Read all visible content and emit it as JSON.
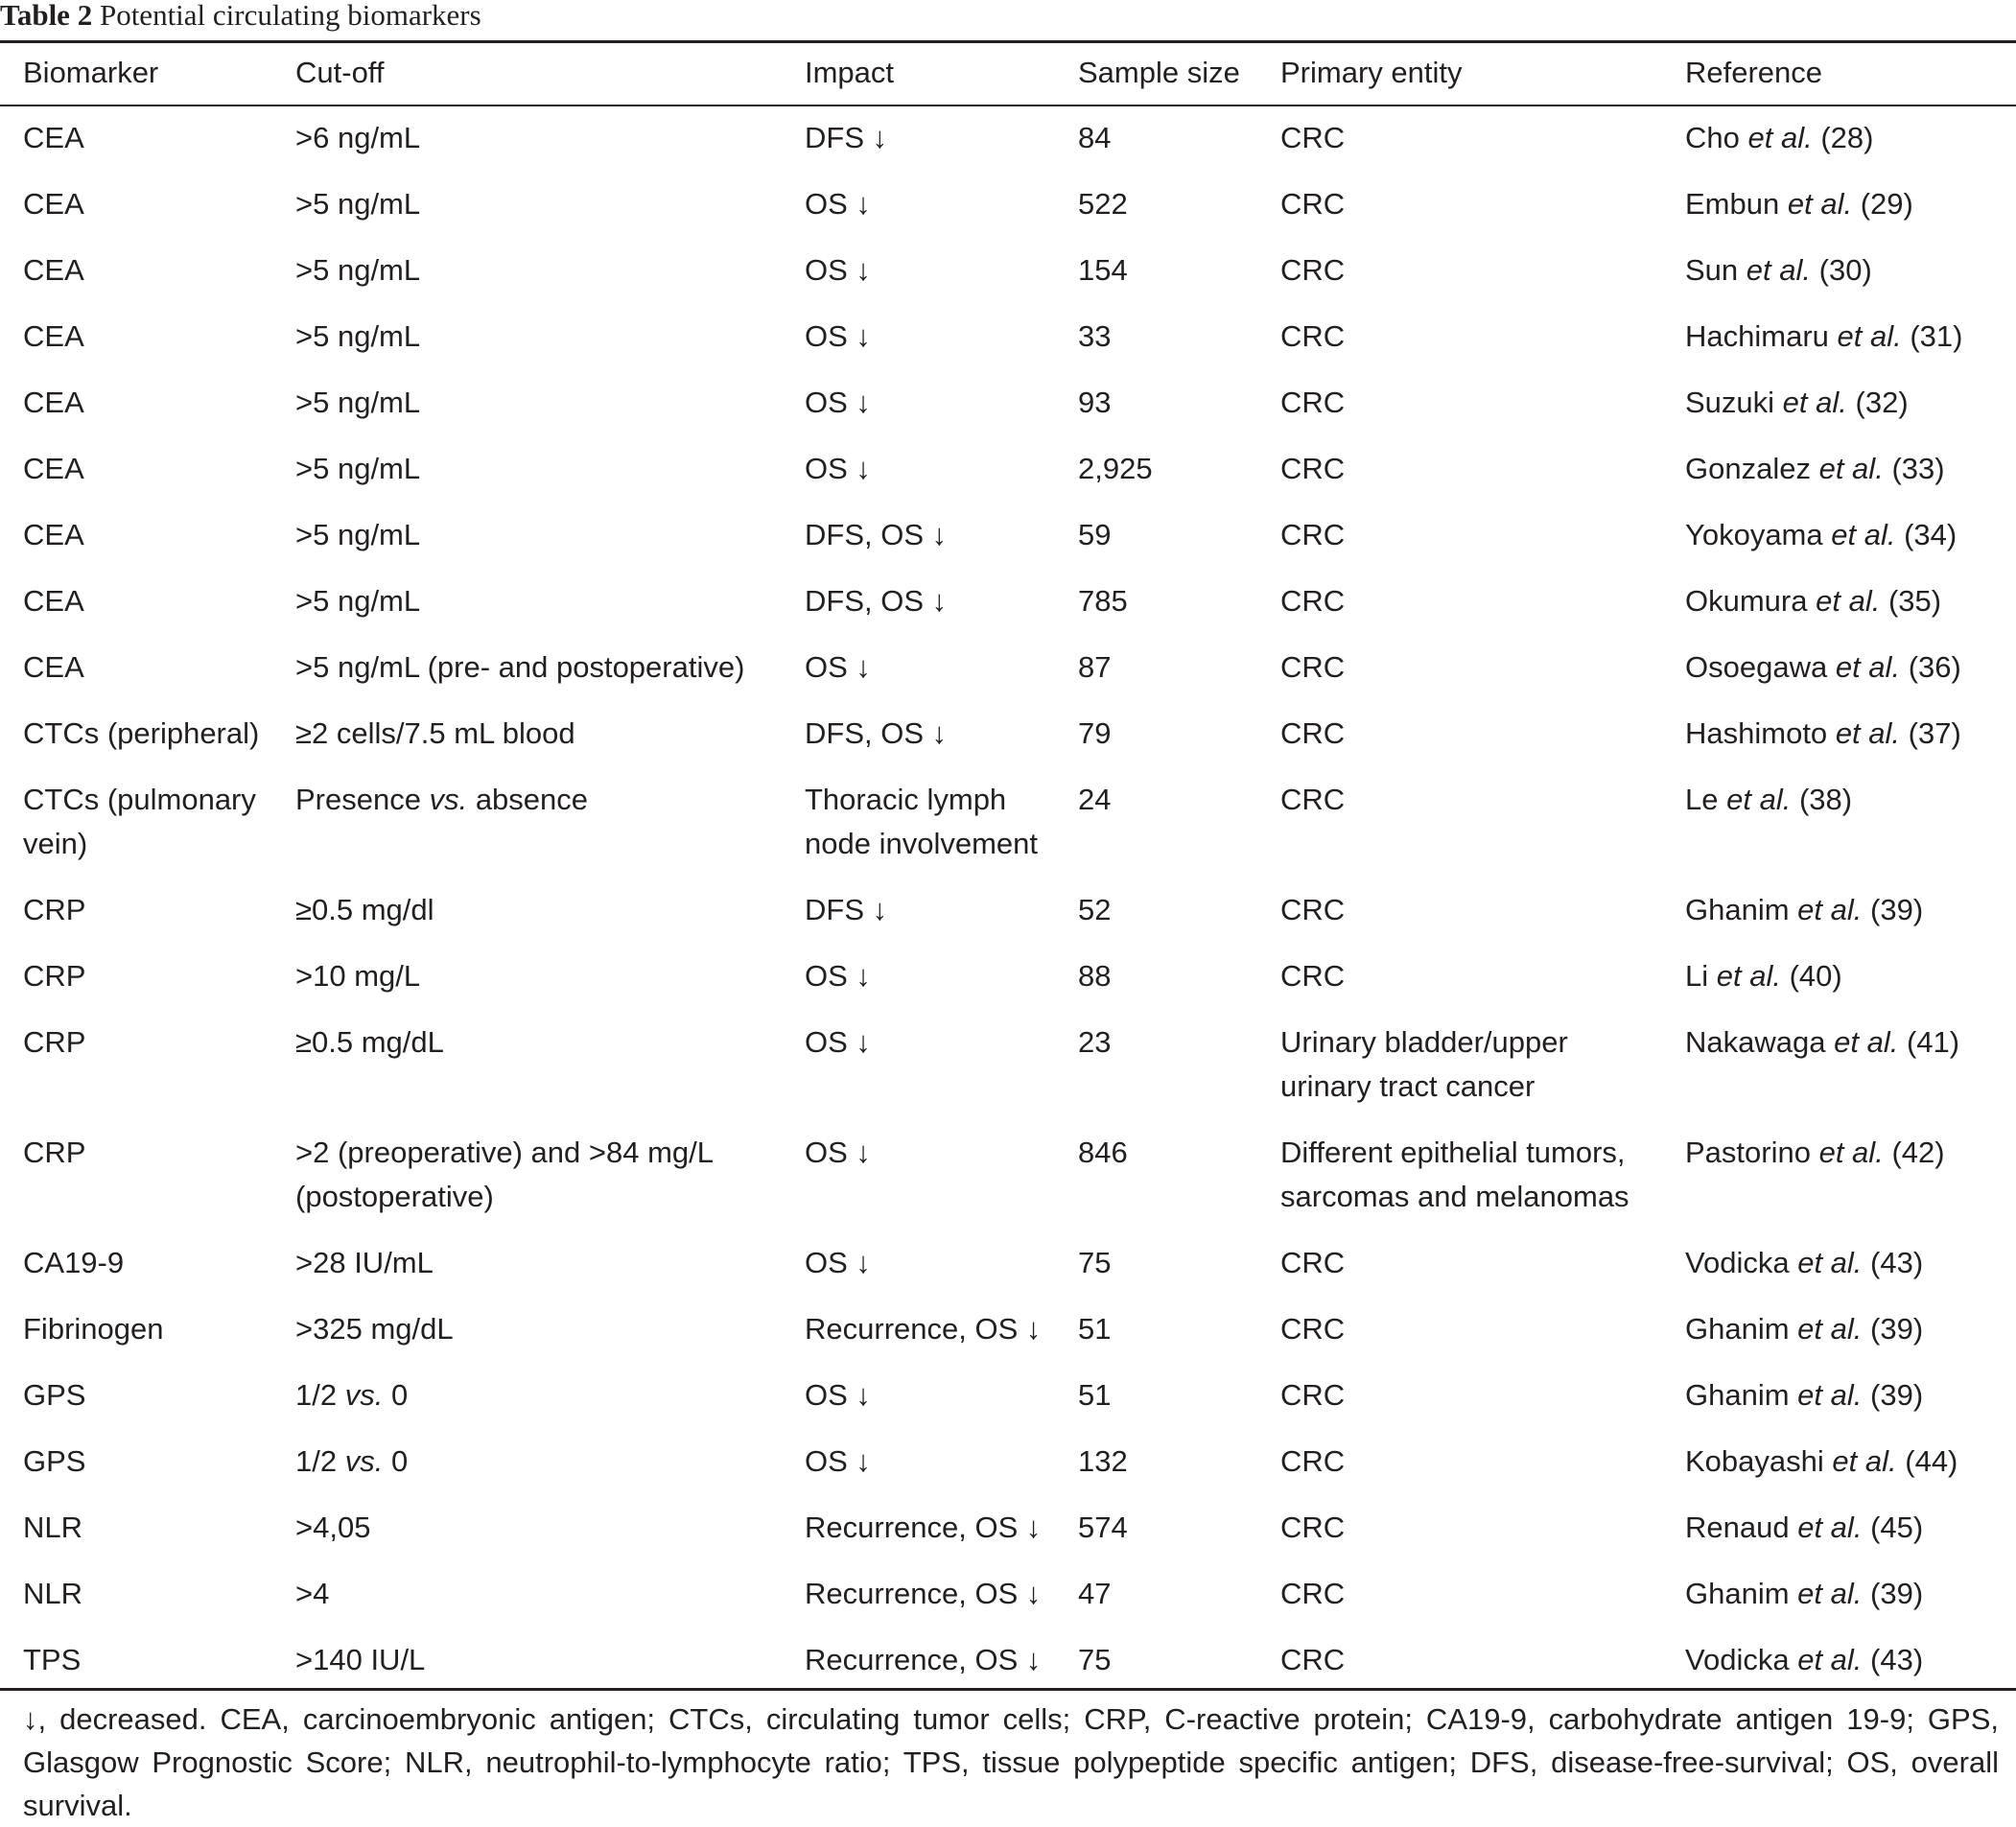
{
  "caption": {
    "label": "Table 2",
    "title": "Potential circulating biomarkers"
  },
  "headers": [
    "Biomarker",
    "Cut-off",
    "Impact",
    "Sample size",
    "Primary entity",
    "Reference"
  ],
  "rows": [
    {
      "biomarker": [
        "CEA"
      ],
      "cutoff": ">6 ng/mL",
      "impact": [
        "DFS ↓"
      ],
      "n": "84",
      "entity": [
        "CRC"
      ],
      "ref": {
        "author": "Cho",
        "etal": "et al.",
        "num": "(28)"
      }
    },
    {
      "biomarker": [
        "CEA"
      ],
      "cutoff": ">5 ng/mL",
      "impact": [
        "OS ↓"
      ],
      "n": "522",
      "entity": [
        "CRC"
      ],
      "ref": {
        "author": "Embun",
        "etal": "et al.",
        "num": "(29)"
      }
    },
    {
      "biomarker": [
        "CEA"
      ],
      "cutoff": ">5 ng/mL",
      "impact": [
        "OS ↓"
      ],
      "n": "154",
      "entity": [
        "CRC"
      ],
      "ref": {
        "author": "Sun",
        "etal": "et al.",
        "num": "(30)"
      }
    },
    {
      "biomarker": [
        "CEA"
      ],
      "cutoff": ">5 ng/mL",
      "impact": [
        "OS ↓"
      ],
      "n": "33",
      "entity": [
        "CRC"
      ],
      "ref": {
        "author": "Hachimaru",
        "etal": "et al.",
        "num": "(31)"
      }
    },
    {
      "biomarker": [
        "CEA"
      ],
      "cutoff": ">5 ng/mL",
      "impact": [
        "OS ↓"
      ],
      "n": "93",
      "entity": [
        "CRC"
      ],
      "ref": {
        "author": "Suzuki",
        "etal": "et al.",
        "num": "(32)"
      }
    },
    {
      "biomarker": [
        "CEA"
      ],
      "cutoff": ">5 ng/mL",
      "impact": [
        "OS ↓"
      ],
      "n": "2,925",
      "entity": [
        "CRC"
      ],
      "ref": {
        "author": "Gonzalez",
        "etal": "et al.",
        "num": "(33)"
      }
    },
    {
      "biomarker": [
        "CEA"
      ],
      "cutoff": ">5 ng/mL",
      "impact": [
        "DFS, OS ↓"
      ],
      "n": "59",
      "entity": [
        "CRC"
      ],
      "ref": {
        "author": "Yokoyama",
        "etal": "et al.",
        "num": "(34)"
      }
    },
    {
      "biomarker": [
        "CEA"
      ],
      "cutoff": ">5 ng/mL",
      "impact": [
        "DFS, OS ↓"
      ],
      "n": "785",
      "entity": [
        "CRC"
      ],
      "ref": {
        "author": "Okumura",
        "etal": "et al.",
        "num": "(35)"
      }
    },
    {
      "biomarker": [
        "CEA"
      ],
      "cutoff": ">5 ng/mL (pre- and postoperative)",
      "impact": [
        "OS ↓"
      ],
      "n": "87",
      "entity": [
        "CRC"
      ],
      "ref": {
        "author": "Osoegawa",
        "etal": "et al.",
        "num": "(36)"
      }
    },
    {
      "biomarker": [
        "CTCs (peripheral)"
      ],
      "cutoff": "≥2 cells/7.5 mL blood",
      "impact": [
        "DFS, OS ↓"
      ],
      "n": "79",
      "entity": [
        "CRC"
      ],
      "ref": {
        "author": "Hashimoto",
        "etal": "et al.",
        "num": "(37)"
      }
    },
    {
      "biomarker": [
        "CTCs (pulmonary",
        "vein)"
      ],
      "cutoff_parts": {
        "a": "Presence ",
        "vs": "vs.",
        "b": " absence"
      },
      "impact": [
        "Thoracic lymph",
        "node involvement"
      ],
      "n": "24",
      "entity": [
        "CRC"
      ],
      "ref": {
        "author": "Le",
        "etal": "et al.",
        "num": "(38)"
      }
    },
    {
      "biomarker": [
        "CRP"
      ],
      "cutoff": "≥0.5 mg/dl",
      "impact": [
        "DFS ↓"
      ],
      "n": "52",
      "entity": [
        "CRC"
      ],
      "ref": {
        "author": "Ghanim",
        "etal": "et al.",
        "num": "(39)"
      }
    },
    {
      "biomarker": [
        "CRP"
      ],
      "cutoff": ">10 mg/L",
      "impact": [
        "OS ↓"
      ],
      "n": "88",
      "entity": [
        "CRC"
      ],
      "ref": {
        "author": "Li",
        "etal": "et al.",
        "num": "(40)"
      }
    },
    {
      "biomarker": [
        "CRP"
      ],
      "cutoff": "≥0.5 mg/dL",
      "impact": [
        "OS ↓"
      ],
      "n": "23",
      "entity": [
        "Urinary bladder/upper",
        "urinary tract cancer"
      ],
      "ref": {
        "author": "Nakawaga",
        "etal": "et al.",
        "num": "(41)"
      }
    },
    {
      "biomarker": [
        "CRP"
      ],
      "cutoff_lines": [
        ">2 (preoperative) and >84 mg/L",
        "(postoperative)"
      ],
      "impact": [
        "OS ↓"
      ],
      "n": "846",
      "entity": [
        "Different epithelial tumors,",
        "sarcomas and melanomas"
      ],
      "ref": {
        "author": "Pastorino",
        "etal": "et al.",
        "num": "(42)"
      }
    },
    {
      "biomarker": [
        "CA19-9"
      ],
      "cutoff": ">28 IU/mL",
      "impact": [
        "OS ↓"
      ],
      "n": "75",
      "entity": [
        "CRC"
      ],
      "ref": {
        "author": "Vodicka",
        "etal": "et al.",
        "num": "(43)"
      }
    },
    {
      "biomarker": [
        "Fibrinogen"
      ],
      "cutoff": ">325 mg/dL",
      "impact": [
        "Recurrence, OS ↓"
      ],
      "n": "51",
      "entity": [
        "CRC"
      ],
      "ref": {
        "author": "Ghanim",
        "etal": "et al.",
        "num": "(39)"
      }
    },
    {
      "biomarker": [
        "GPS"
      ],
      "cutoff_parts": {
        "a": "1/2 ",
        "vs": "vs.",
        "b": " 0"
      },
      "impact": [
        "OS ↓"
      ],
      "n": "51",
      "entity": [
        "CRC"
      ],
      "ref": {
        "author": "Ghanim",
        "etal": "et al.",
        "num": "(39)"
      }
    },
    {
      "biomarker": [
        "GPS"
      ],
      "cutoff_parts": {
        "a": "1/2 ",
        "vs": "vs.",
        "b": " 0"
      },
      "impact": [
        "OS ↓"
      ],
      "n": "132",
      "entity": [
        "CRC"
      ],
      "ref": {
        "author": "Kobayashi",
        "etal": "et al.",
        "num": "(44)"
      }
    },
    {
      "biomarker": [
        "NLR"
      ],
      "cutoff": ">4,05",
      "impact": [
        "Recurrence, OS ↓"
      ],
      "n": "574",
      "entity": [
        "CRC"
      ],
      "ref": {
        "author": "Renaud",
        "etal": "et al.",
        "num": "(45)"
      }
    },
    {
      "biomarker": [
        "NLR"
      ],
      "cutoff": ">4",
      "impact": [
        "Recurrence, OS ↓"
      ],
      "n": "47",
      "entity": [
        "CRC"
      ],
      "ref": {
        "author": "Ghanim",
        "etal": "et al.",
        "num": "(39)"
      }
    },
    {
      "biomarker": [
        "TPS"
      ],
      "cutoff": ">140 IU/L",
      "impact": [
        "Recurrence, OS ↓"
      ],
      "n": "75",
      "entity": [
        "CRC"
      ],
      "ref": {
        "author": "Vodicka",
        "etal": "et al.",
        "num": "(43)"
      }
    }
  ],
  "footnote": "↓, decreased. CEA, carcinoembryonic antigen; CTCs, circulating tumor cells; CRP, C-reactive protein; CA19-9, carbohydrate antigen 19-9; GPS, Glasgow Prognostic Score; NLR, neutrophil-to-lymphocyte ratio; TPS, tissue polypeptide specific antigen; DFS, disease-free-survival; OS, overall survival."
}
